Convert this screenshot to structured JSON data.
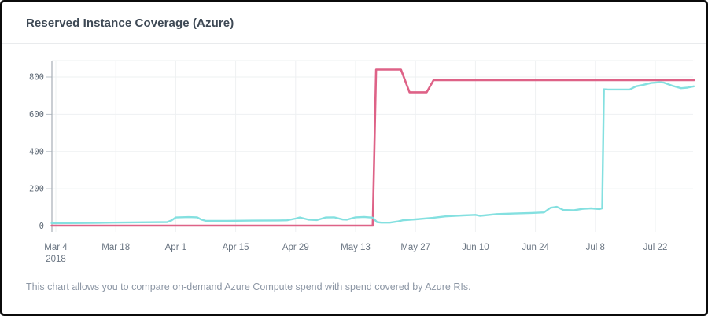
{
  "header": {
    "title": "Reserved Instance Coverage (Azure)"
  },
  "footer": {
    "description": "This chart allows you to compare on-demand Azure Compute spend with spend covered by Azure RIs."
  },
  "colors": {
    "pink_series": "#de6287",
    "cyan_series": "#84e0e0",
    "gridline": "#eef0f2",
    "axis_line": "#a6aeb6",
    "tick_mark": "#b9c0c7",
    "title_text": "#3e4955",
    "tick_text": "#6b7683",
    "footer_text": "#8d97a5"
  },
  "chart_data": {
    "type": "line",
    "title": "Reserved Instance Coverage (Azure)",
    "legend": "none",
    "grid": true,
    "x_axis": {
      "start_date": "2018-03-04",
      "year_label": "2018",
      "tick_labels": [
        "Mar 4",
        "Mar 18",
        "Apr 1",
        "Apr 15",
        "Apr 29",
        "May 13",
        "May 27",
        "Jun 10",
        "Jun 24",
        "Jul 8",
        "Jul 22"
      ],
      "tick_days": [
        0,
        14,
        28,
        42,
        56,
        70,
        84,
        98,
        112,
        126,
        140
      ],
      "domain_days": [
        -1,
        149
      ]
    },
    "y_axis": {
      "ticks": [
        0,
        200,
        400,
        600,
        800
      ],
      "range": [
        0,
        890
      ]
    },
    "series": [
      {
        "name": "pink-line",
        "color": "#de6287",
        "stroke_width": 2.6,
        "points": [
          [
            -1,
            2
          ],
          [
            74,
            2
          ],
          [
            74.8,
            840
          ],
          [
            80.6,
            840
          ],
          [
            82.6,
            718
          ],
          [
            86.6,
            718
          ],
          [
            88.2,
            783
          ],
          [
            149,
            783
          ]
        ]
      },
      {
        "name": "cyan-line",
        "color": "#84e0e0",
        "stroke_width": 2.4,
        "points": [
          [
            -1,
            15
          ],
          [
            6,
            16
          ],
          [
            13,
            18
          ],
          [
            20,
            20
          ],
          [
            26,
            21
          ],
          [
            27,
            30
          ],
          [
            28,
            46
          ],
          [
            31,
            48
          ],
          [
            33,
            47
          ],
          [
            34,
            34
          ],
          [
            35,
            28
          ],
          [
            40,
            28
          ],
          [
            46,
            29
          ],
          [
            52,
            30
          ],
          [
            54,
            31
          ],
          [
            56,
            40
          ],
          [
            57,
            46
          ],
          [
            59,
            34
          ],
          [
            61,
            32
          ],
          [
            63,
            46
          ],
          [
            65,
            47
          ],
          [
            67,
            35
          ],
          [
            68,
            34
          ],
          [
            70,
            47
          ],
          [
            72,
            49
          ],
          [
            74,
            45
          ],
          [
            75,
            21
          ],
          [
            76,
            18
          ],
          [
            78,
            18
          ],
          [
            80,
            25
          ],
          [
            81,
            31
          ],
          [
            84,
            36
          ],
          [
            88,
            44
          ],
          [
            91,
            52
          ],
          [
            95,
            57
          ],
          [
            98,
            60
          ],
          [
            99,
            55
          ],
          [
            100,
            57
          ],
          [
            103,
            64
          ],
          [
            107,
            67
          ],
          [
            111,
            70
          ],
          [
            114,
            73
          ],
          [
            115.5,
            98
          ],
          [
            117,
            103
          ],
          [
            118.5,
            86
          ],
          [
            121,
            85
          ],
          [
            123,
            92
          ],
          [
            125,
            95
          ],
          [
            126,
            93
          ],
          [
            127,
            91
          ],
          [
            127.6,
            95
          ],
          [
            128,
            734
          ],
          [
            129,
            733
          ],
          [
            134,
            733
          ],
          [
            135.5,
            750
          ],
          [
            137,
            757
          ],
          [
            139,
            768
          ],
          [
            141,
            772
          ],
          [
            142,
            770
          ],
          [
            144,
            753
          ],
          [
            146,
            740
          ],
          [
            147.5,
            743
          ],
          [
            149,
            750
          ]
        ]
      }
    ]
  }
}
